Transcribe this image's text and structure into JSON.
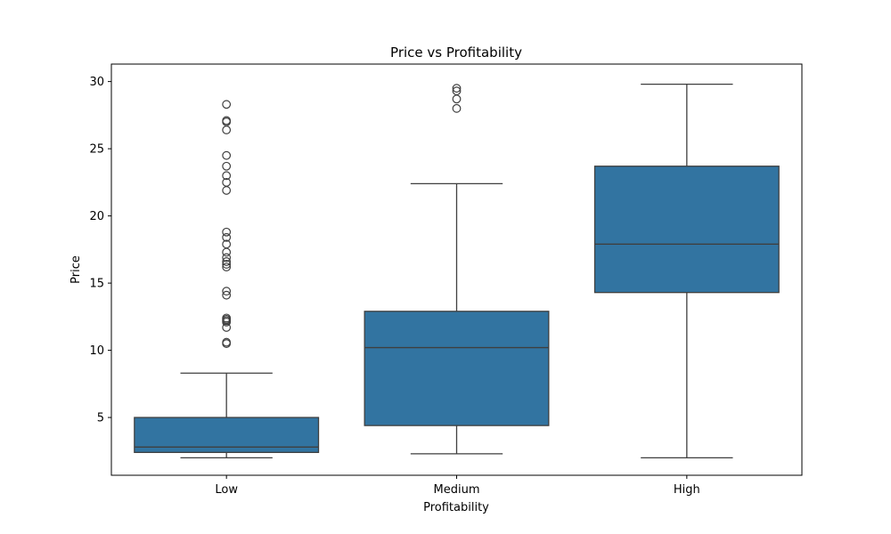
{
  "chart_data": {
    "type": "box",
    "title": "Price vs Profitability",
    "xlabel": "Profitability",
    "ylabel": "Price",
    "categories": [
      "Low",
      "Medium",
      "High"
    ],
    "ylim": [
      0.7,
      31.3
    ],
    "yticks": [
      5,
      10,
      15,
      20,
      25,
      30
    ],
    "box_color": "#3274a1",
    "line_color": "#3f3f3f",
    "grid": false,
    "boxes": [
      {
        "category": "Low",
        "whisker_low": 2.0,
        "q1": 2.4,
        "median": 2.8,
        "q3": 5.0,
        "whisker_high": 8.3,
        "outliers": [
          10.5,
          10.6,
          11.7,
          12.1,
          12.2,
          12.3,
          12.4,
          14.1,
          14.4,
          16.2,
          16.4,
          16.6,
          16.9,
          17.3,
          17.9,
          18.4,
          18.8,
          21.9,
          22.5,
          23.0,
          23.7,
          24.5,
          26.4,
          27.0,
          27.1,
          28.3
        ]
      },
      {
        "category": "Medium",
        "whisker_low": 2.3,
        "q1": 4.4,
        "median": 10.2,
        "q3": 12.9,
        "whisker_high": 22.4,
        "outliers": [
          28.0,
          28.7,
          29.3,
          29.5
        ]
      },
      {
        "category": "High",
        "whisker_low": 2.0,
        "q1": 14.3,
        "median": 17.9,
        "q3": 23.7,
        "whisker_high": 29.8,
        "outliers": []
      }
    ]
  }
}
